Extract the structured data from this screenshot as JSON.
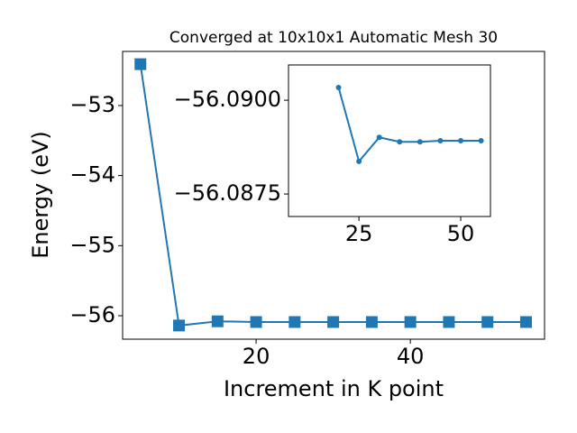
{
  "chart_data": [
    {
      "type": "line",
      "title": "Converged at 10x10x1 Automatic Mesh 30",
      "x_label": "Increment in K point",
      "y_label": "Energy (eV)",
      "x": [
        5,
        10,
        15,
        20,
        25,
        30,
        35,
        40,
        45,
        50,
        55
      ],
      "series": [
        {
          "color": "#1f77b4",
          "marker": "square",
          "values": [
            -52.41,
            -56.14,
            -56.08,
            -56.09,
            -56.09,
            -56.09,
            -56.09,
            -56.09,
            -56.09,
            -56.09,
            -56.09
          ]
        }
      ],
      "xlim": [
        2.69,
        57.4
      ],
      "ylim": [
        -56.335,
        -52.228
      ],
      "xticks": [
        20,
        40
      ],
      "yticks": [
        {
          "value": -56,
          "label": "−56"
        },
        {
          "value": -55,
          "label": "−55"
        },
        {
          "value": -54,
          "label": "−54"
        },
        {
          "value": -53,
          "label": "−53"
        }
      ]
    },
    {
      "type": "line",
      "x": [
        20,
        25,
        30,
        35,
        40,
        45,
        50,
        55
      ],
      "series": [
        {
          "color": "#1f77b4",
          "marker": "circle",
          "values": [
            -56.09034,
            -56.08837,
            -56.08901,
            -56.08889,
            -56.08889,
            -56.08892,
            -56.08892,
            -56.08892
          ]
        }
      ],
      "xlim": [
        7.7,
        57.3
      ],
      "ylim": [
        -56.0869,
        -56.09094
      ],
      "xticks": [
        25,
        50
      ],
      "yticks": [
        {
          "value": -56.0875,
          "label": "−56.0875"
        },
        {
          "value": -56.09,
          "label": "−56.0900"
        }
      ]
    }
  ]
}
